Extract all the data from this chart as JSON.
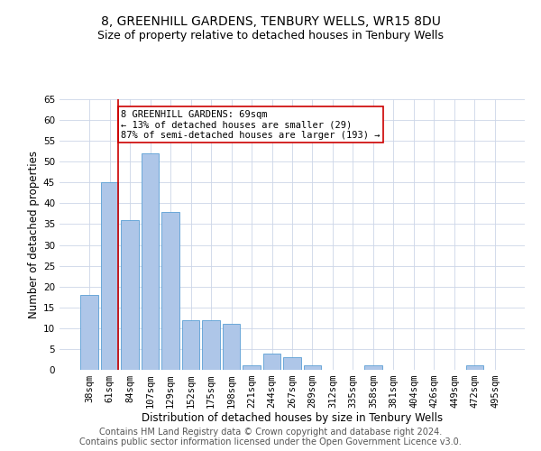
{
  "title1": "8, GREENHILL GARDENS, TENBURY WELLS, WR15 8DU",
  "title2": "Size of property relative to detached houses in Tenbury Wells",
  "xlabel": "Distribution of detached houses by size in Tenbury Wells",
  "ylabel": "Number of detached properties",
  "categories": [
    "38sqm",
    "61sqm",
    "84sqm",
    "107sqm",
    "129sqm",
    "152sqm",
    "175sqm",
    "198sqm",
    "221sqm",
    "244sqm",
    "267sqm",
    "289sqm",
    "312sqm",
    "335sqm",
    "358sqm",
    "381sqm",
    "404sqm",
    "426sqm",
    "449sqm",
    "472sqm",
    "495sqm"
  ],
  "values": [
    18,
    45,
    36,
    52,
    38,
    12,
    12,
    11,
    1,
    4,
    3,
    1,
    0,
    0,
    1,
    0,
    0,
    0,
    0,
    1,
    0
  ],
  "bar_color": "#aec6e8",
  "bar_edge_color": "#5a9fd4",
  "grid_color": "#ccd6e8",
  "marker_color": "#cc0000",
  "annotation_text": "8 GREENHILL GARDENS: 69sqm\n← 13% of detached houses are smaller (29)\n87% of semi-detached houses are larger (193) →",
  "annotation_box_color": "white",
  "annotation_box_edge": "#cc0000",
  "footer1": "Contains HM Land Registry data © Crown copyright and database right 2024.",
  "footer2": "Contains public sector information licensed under the Open Government Licence v3.0.",
  "ylim": [
    0,
    65
  ],
  "yticks": [
    0,
    5,
    10,
    15,
    20,
    25,
    30,
    35,
    40,
    45,
    50,
    55,
    60,
    65
  ],
  "title1_fontsize": 10,
  "title2_fontsize": 9,
  "xlabel_fontsize": 8.5,
  "ylabel_fontsize": 8.5,
  "tick_fontsize": 7.5,
  "annotation_fontsize": 7.5,
  "footer_fontsize": 7
}
